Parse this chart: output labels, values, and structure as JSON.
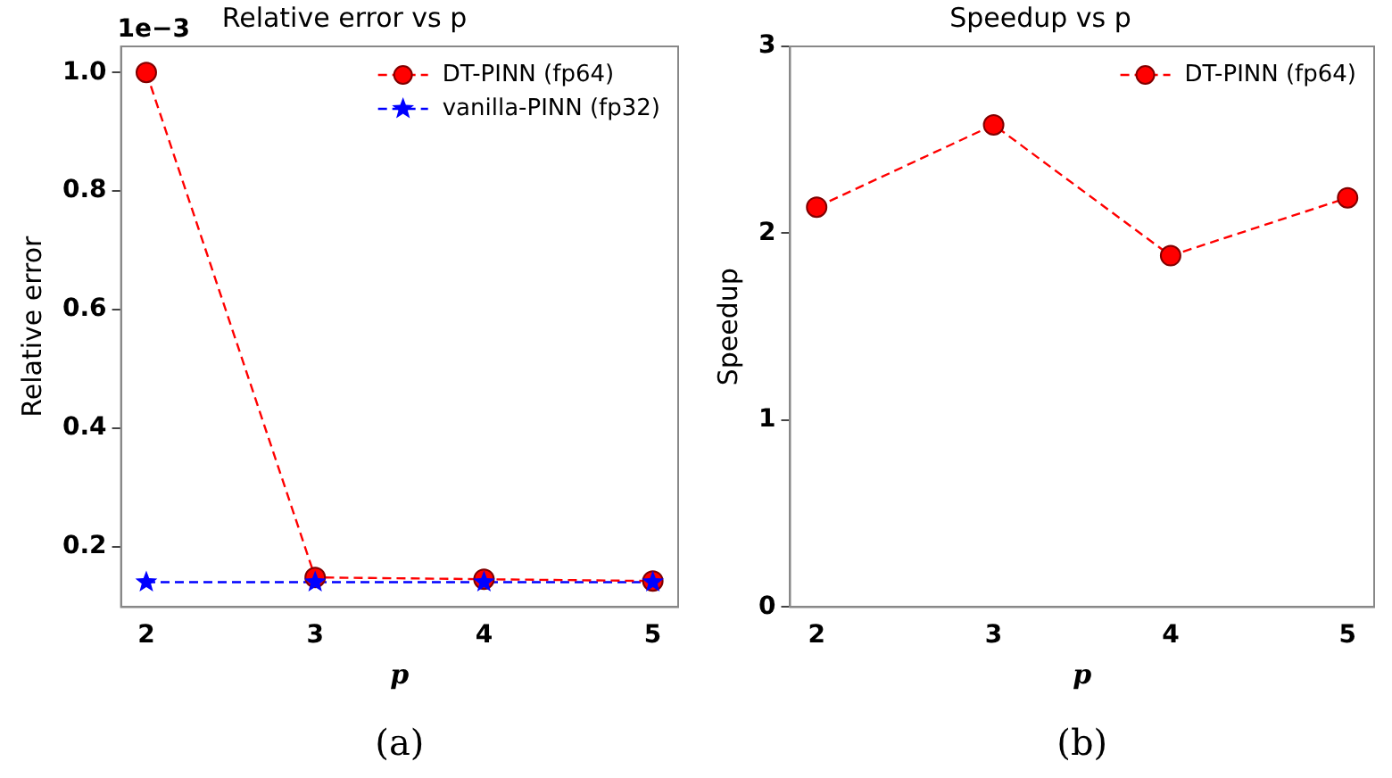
{
  "chart_data": [
    {
      "type": "line",
      "title": "Relative error vs p",
      "xlabel": "p",
      "ylabel": "Relative error",
      "x": [
        2,
        3,
        4,
        5
      ],
      "series": [
        {
          "name": "DT-PINN (fp64)",
          "color": "#ff0000",
          "values": [
            1.0,
            0.148,
            0.145,
            0.142
          ],
          "marker": "circle"
        },
        {
          "name": "vanilla-PINN (fp32)",
          "color": "#0000ff",
          "values": [
            0.14,
            0.14,
            0.14,
            0.14
          ],
          "marker": "star"
        }
      ],
      "xlim": [
        1.85,
        5.15
      ],
      "xticks": [
        2,
        3,
        4,
        5
      ],
      "ylim": [
        0.098,
        1.044
      ],
      "yticks": [
        0.2,
        0.4,
        0.6,
        0.8,
        {
          "value": 1.0,
          "label": "1.0"
        }
      ],
      "grid": false,
      "legend": "top right",
      "line_style": "dashed",
      "annotations": [
        "1e−3",
        "(a)"
      ]
    },
    {
      "type": "line",
      "title": "Speedup vs p",
      "xlabel": "p",
      "ylabel": "Speedup",
      "x": [
        2,
        3,
        4,
        5
      ],
      "series": [
        {
          "name": "DT-PINN (fp64)",
          "color": "#ff0000",
          "values": [
            2.14,
            2.58,
            1.88,
            2.19
          ],
          "marker": "circle"
        }
      ],
      "xlim": [
        1.85,
        5.15
      ],
      "xticks": [
        2,
        3,
        4,
        5
      ],
      "ylim": [
        0,
        3
      ],
      "yticks": [
        0,
        1,
        2,
        3
      ],
      "grid": false,
      "legend": "top right",
      "line_style": "dashed",
      "annotations": [
        "(b)"
      ]
    }
  ]
}
